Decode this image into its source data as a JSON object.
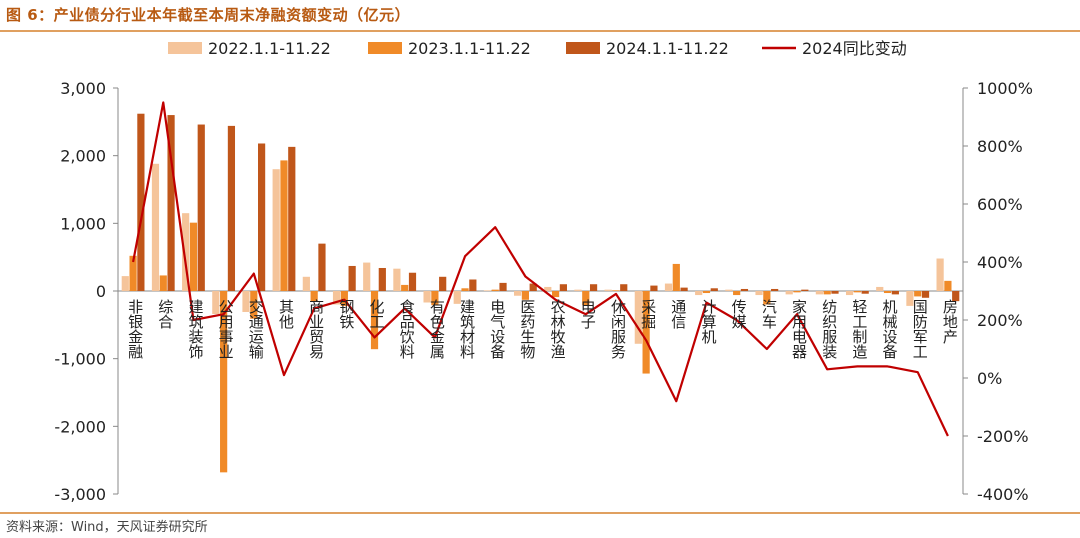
{
  "header": {
    "title": "图 6：产业债分行业本年截至本周末净融资额变动（亿元）"
  },
  "footer": {
    "source": "资料来源：Wind，天风证券研究所"
  },
  "chart_data": {
    "type": "bar",
    "title": "图 6：产业债分行业本年截至本周末净融资额变动（亿元）",
    "ylim_left": [
      -3000,
      3000
    ],
    "yticks_left": [
      -3000,
      -2000,
      -1000,
      0,
      1000,
      2000,
      3000
    ],
    "yticklabels_left": [
      "-3,000",
      "-2,000",
      "-1,000",
      "0",
      "1,000",
      "2,000",
      "3,000"
    ],
    "ylim_right": [
      -400,
      1000
    ],
    "yticks_right": [
      -400,
      -200,
      0,
      200,
      400,
      600,
      800,
      1000
    ],
    "yticklabels_right": [
      "-400%",
      "-200%",
      "0%",
      "200%",
      "400%",
      "600%",
      "800%",
      "1000%"
    ],
    "legend_position": "top",
    "grid": false,
    "categories": [
      "非银金融",
      "综合",
      "建筑装饰",
      "公用事业",
      "交通运输",
      "其他",
      "商业贸易",
      "钢铁",
      "化工",
      "食品饮料",
      "有色金属",
      "建筑材料",
      "电气设备",
      "医药生物",
      "农林牧渔",
      "电子",
      "休闲服务",
      "采掘",
      "通信",
      "计算机",
      "传媒",
      "汽车",
      "家用电器",
      "纺织服装",
      "轻工制造",
      "机械设备",
      "国防军工",
      "房地产"
    ],
    "series": [
      {
        "name": "2022.1.1-11.22",
        "kind": "bar",
        "color": "#f5c49a",
        "values": [
          220,
          1880,
          1150,
          -340,
          -310,
          1800,
          210,
          -200,
          420,
          330,
          -170,
          -190,
          10,
          -70,
          60,
          20,
          20,
          -780,
          110,
          -60,
          20,
          -60,
          -50,
          -50,
          -60,
          60,
          -220,
          480
        ]
      },
      {
        "name": "2023.1.1-11.22",
        "kind": "bar",
        "color": "#f08a28",
        "values": [
          520,
          230,
          1010,
          -2680,
          -410,
          1930,
          -160,
          -220,
          -860,
          90,
          -210,
          40,
          20,
          -130,
          -90,
          -210,
          10,
          -1220,
          400,
          -30,
          -60,
          -200,
          -20,
          -50,
          -20,
          -30,
          -80,
          150
        ]
      },
      {
        "name": "2024.1.1-11.22",
        "kind": "bar",
        "color": "#c0561a",
        "values": [
          2620,
          2600,
          2460,
          2440,
          2180,
          2130,
          700,
          370,
          340,
          270,
          210,
          170,
          120,
          110,
          100,
          100,
          100,
          80,
          50,
          40,
          30,
          30,
          20,
          -40,
          -40,
          -50,
          -100,
          -150
        ]
      },
      {
        "name": "2024同比变动",
        "kind": "line",
        "axis": "right",
        "color": "#c00000",
        "values": [
          400,
          950,
          200,
          220,
          360,
          10,
          240,
          270,
          140,
          240,
          140,
          420,
          520,
          350,
          270,
          220,
          290,
          130,
          -80,
          260,
          200,
          100,
          220,
          30,
          40,
          40,
          20,
          -200
        ]
      }
    ]
  }
}
